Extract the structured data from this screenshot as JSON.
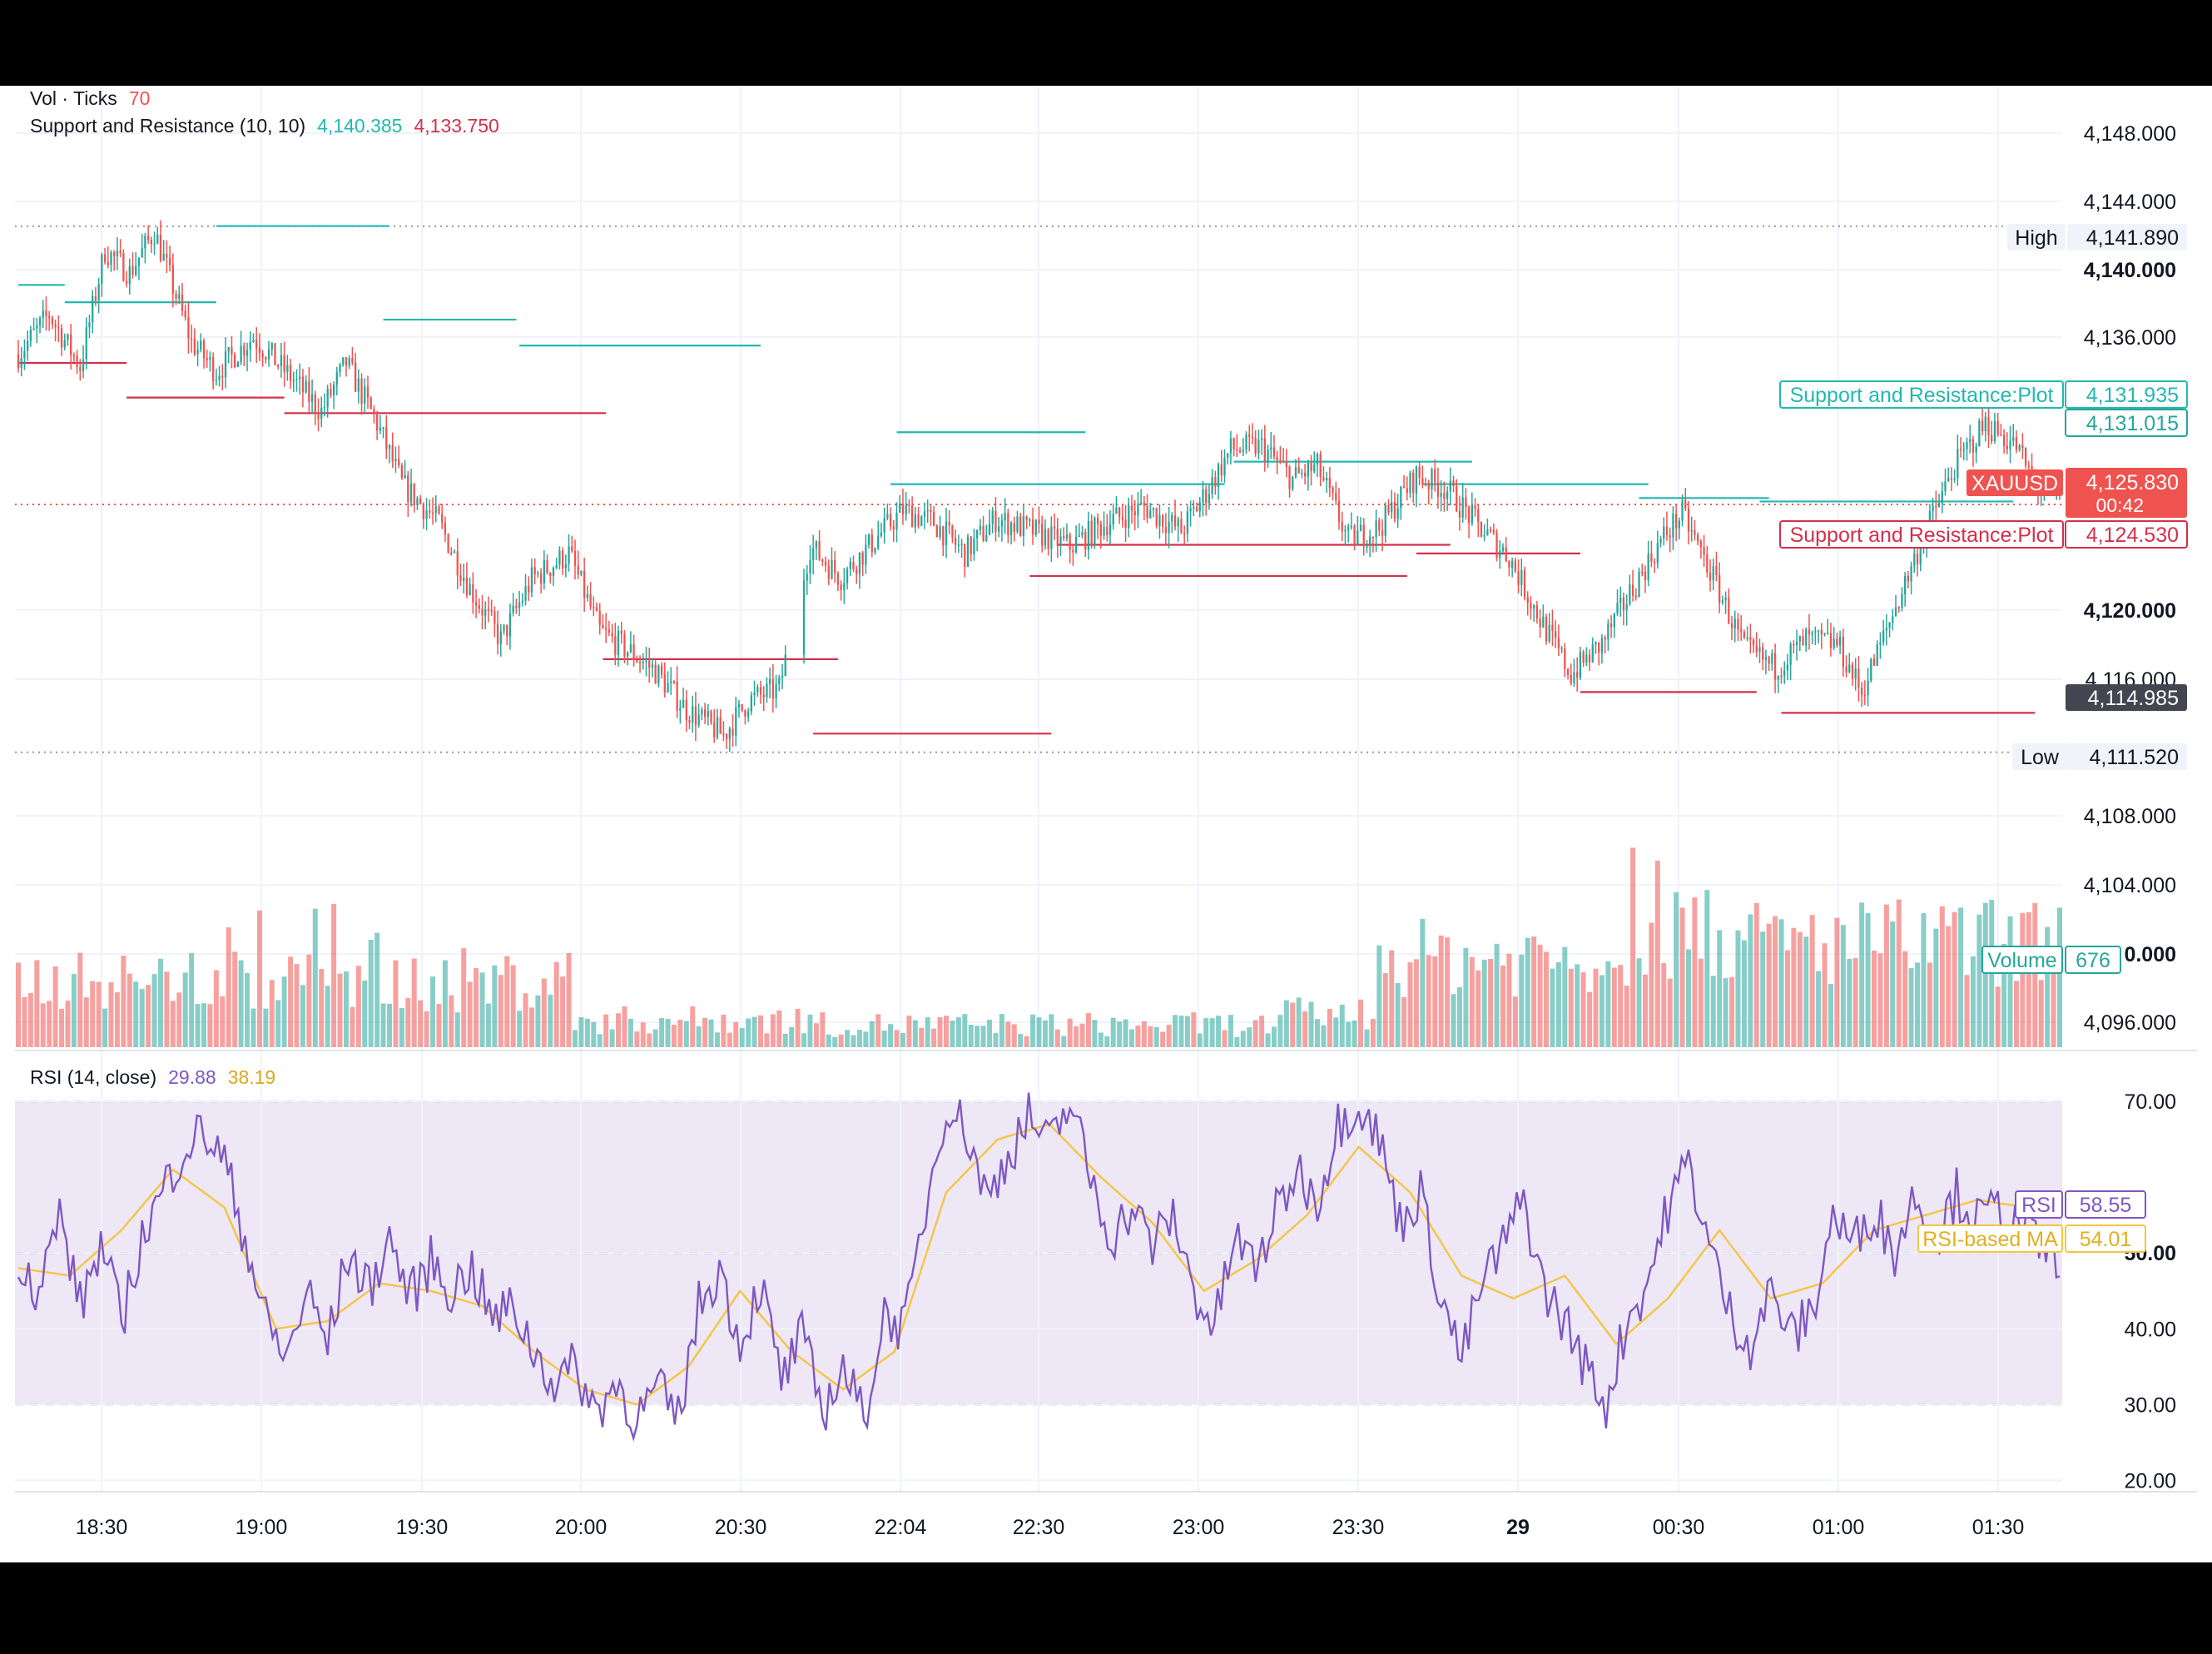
{
  "colors": {
    "up": "#26a69a",
    "down": "#ef5350",
    "resistance": "#22b8b0",
    "support": "#d3304a",
    "rsi": "#7e57c2",
    "rsi_ma": "#f5c542",
    "grid": "#f0f3fa",
    "text": "#131722",
    "rsi_band": "#ede7f6"
  },
  "legend": {
    "vol_label": "Vol · Ticks",
    "vol_value": "70",
    "sr_label": "Support and Resistance (10, 10)",
    "sr_resistance": "4,140.385",
    "sr_support": "4,133.750",
    "rsi_label": "RSI (14, close)",
    "rsi_value": "29.88",
    "rsi_ma_value": "38.19"
  },
  "chart_data": [
    {
      "type": "candlestick",
      "symbol": "XAUUSD",
      "price_axis_ticks": [
        "4,148.000",
        "4,144.000",
        "4,140.000",
        "4,136.000",
        "4,120.000",
        "4,116.000",
        "4,108.000",
        "4,104.000",
        "0.000",
        "4,096.000"
      ],
      "price_range": [
        4094.5,
        4150.0
      ],
      "x_tick_labels": [
        "18:30",
        "19:00",
        "19:30",
        "20:00",
        "20:30",
        "22:04",
        "22:30",
        "23:00",
        "23:30",
        "29",
        "00:30",
        "01:00",
        "01:30"
      ],
      "high_label": "High",
      "high_value": "4,141.890",
      "low_label": "Low",
      "low_value": "4,111.520",
      "last_price": "4,125.830",
      "countdown": "00:42",
      "prev_close": "4,114.985",
      "sr_resistance_label": "Support and Resistance:Plot",
      "sr_resistance_value": "4,131.935",
      "sr_support_label": "Support and Resistance:Plot",
      "sr_support_value": "4,124.530",
      "upper_marker": "4,131.015",
      "volume_label": "Volume",
      "volume_value": "676",
      "anchors": [
        [
          0,
          4134.5
        ],
        [
          10,
          4136.8
        ],
        [
          20,
          4133.8
        ],
        [
          28,
          4140.5
        ],
        [
          36,
          4139.2
        ],
        [
          44,
          4141.6
        ],
        [
          56,
          4135.2
        ],
        [
          64,
          4133.5
        ],
        [
          76,
          4135.5
        ],
        [
          88,
          4133.2
        ],
        [
          98,
          4131.2
        ],
        [
          106,
          4134.0
        ],
        [
          116,
          4130.5
        ],
        [
          124,
          4127.0
        ],
        [
          136,
          4124.8
        ],
        [
          146,
          4121.0
        ],
        [
          156,
          4118.0
        ],
        [
          166,
          4121.5
        ],
        [
          178,
          4123.0
        ],
        [
          188,
          4118.5
        ],
        [
          198,
          4117.3
        ],
        [
          206,
          4116.2
        ],
        [
          216,
          4114.0
        ],
        [
          228,
          4112.5
        ],
        [
          236,
          4114.5
        ],
        [
          246,
          4115.2
        ],
        [
          256,
          4123.4
        ],
        [
          266,
          4121.6
        ],
        [
          278,
          4124.0
        ],
        [
          286,
          4125.5
        ],
        [
          296,
          4124.8
        ],
        [
          306,
          4123.0
        ],
        [
          316,
          4125.0
        ],
        [
          328,
          4124.3
        ],
        [
          340,
          4123.4
        ],
        [
          352,
          4124.8
        ],
        [
          364,
          4125.7
        ],
        [
          376,
          4124.3
        ],
        [
          384,
          4126.5
        ],
        [
          392,
          4129.0
        ],
        [
          402,
          4129.2
        ],
        [
          412,
          4127.3
        ],
        [
          420,
          4128.0
        ],
        [
          430,
          4123.8
        ],
        [
          440,
          4124.5
        ],
        [
          452,
          4127.5
        ],
        [
          462,
          4126.7
        ],
        [
          472,
          4124.6
        ],
        [
          482,
          4122.8
        ],
        [
          492,
          4119.2
        ],
        [
          502,
          4116.0
        ],
        [
          512,
          4117.8
        ],
        [
          522,
          4121.0
        ],
        [
          532,
          4124.0
        ],
        [
          538,
          4125.3
        ],
        [
          548,
          4121.6
        ],
        [
          558,
          4117.5
        ],
        [
          568,
          4116.4
        ],
        [
          578,
          4118.0
        ],
        [
          588,
          4117.8
        ],
        [
          596,
          4115.0
        ],
        [
          606,
          4119.5
        ],
        [
          616,
          4124.0
        ],
        [
          626,
          4128.0
        ],
        [
          636,
          4130.5
        ],
        [
          646,
          4129.2
        ],
        [
          652,
          4127.0
        ],
        [
          660,
          4126.5
        ]
      ],
      "candle_count": 661,
      "resistance_levels": [
        [
          0,
          15,
          4138.5
        ],
        [
          15,
          64,
          4137.5
        ],
        [
          64,
          120,
          4141.9
        ],
        [
          118,
          161,
          4136.5
        ],
        [
          162,
          240,
          4135.0
        ],
        [
          284,
          345,
          4130.0
        ],
        [
          282,
          390,
          4127.0
        ],
        [
          393,
          470,
          4128.3
        ],
        [
          454,
          527,
          4127.0
        ],
        [
          524,
          566,
          4126.2
        ],
        [
          563,
          645,
          4126.0
        ]
      ],
      "support_levels": [
        [
          0,
          35,
          4134.0
        ],
        [
          35,
          86,
          4132.0
        ],
        [
          86,
          190,
          4131.1
        ],
        [
          189,
          265,
          4116.9
        ],
        [
          257,
          334,
          4112.6
        ],
        [
          336,
          463,
          4123.5
        ],
        [
          327,
          449,
          4121.7
        ],
        [
          452,
          505,
          4123.0
        ],
        [
          505,
          562,
          4115.0
        ],
        [
          570,
          652,
          4113.8
        ]
      ]
    },
    {
      "type": "line",
      "title": "RSI (14, close)",
      "y_ticks": [
        "70.00",
        "50.00",
        "40.00",
        "30.00",
        "20.00"
      ],
      "y_range": [
        18.5,
        76.5
      ],
      "overbought": 70,
      "oversold": 30,
      "rsi_label": "RSI",
      "rsi_value": "58.55",
      "ma_label": "RSI-based MA",
      "ma_value": "54.01",
      "rsi_anchors": [
        [
          0,
          50
        ],
        [
          6,
          45
        ],
        [
          12,
          55
        ],
        [
          18,
          43
        ],
        [
          24,
          51
        ],
        [
          30,
          41
        ],
        [
          36,
          52
        ],
        [
          42,
          58
        ],
        [
          48,
          64
        ],
        [
          54,
          66
        ],
        [
          60,
          62
        ],
        [
          66,
          52
        ],
        [
          72,
          41
        ],
        [
          78,
          36
        ],
        [
          84,
          45
        ],
        [
          90,
          38
        ],
        [
          96,
          50
        ],
        [
          102,
          45
        ],
        [
          108,
          52
        ],
        [
          114,
          44
        ],
        [
          120,
          49
        ],
        [
          126,
          45
        ],
        [
          132,
          48
        ],
        [
          138,
          41
        ],
        [
          144,
          43
        ],
        [
          150,
          37
        ],
        [
          156,
          33
        ],
        [
          162,
          35
        ],
        [
          168,
          29
        ],
        [
          174,
          33
        ],
        [
          180,
          28
        ],
        [
          186,
          32
        ],
        [
          192,
          28
        ],
        [
          198,
          43
        ],
        [
          204,
          48
        ],
        [
          210,
          38
        ],
        [
          216,
          46
        ],
        [
          222,
          33
        ],
        [
          228,
          39
        ],
        [
          234,
          29
        ],
        [
          240,
          35
        ],
        [
          246,
          28
        ],
        [
          252,
          42
        ],
        [
          258,
          40
        ],
        [
          264,
          56
        ],
        [
          270,
          70
        ],
        [
          276,
          66
        ],
        [
          282,
          57
        ],
        [
          288,
          63
        ],
        [
          294,
          68
        ],
        [
          300,
          64
        ],
        [
          306,
          70
        ],
        [
          312,
          60
        ],
        [
          318,
          52
        ],
        [
          324,
          56
        ],
        [
          330,
          51
        ],
        [
          336,
          55
        ],
        [
          342,
          45
        ],
        [
          348,
          40
        ],
        [
          354,
          52
        ],
        [
          360,
          48
        ],
        [
          366,
          55
        ],
        [
          372,
          61
        ],
        [
          378,
          57
        ],
        [
          384,
          67
        ],
        [
          390,
          70
        ],
        [
          396,
          65
        ],
        [
          402,
          54
        ],
        [
          408,
          58
        ],
        [
          414,
          44
        ],
        [
          420,
          36
        ],
        [
          426,
          46
        ],
        [
          432,
          51
        ],
        [
          438,
          57
        ],
        [
          444,
          45
        ],
        [
          450,
          41
        ],
        [
          456,
          35
        ],
        [
          462,
          30
        ],
        [
          468,
          41
        ],
        [
          474,
          46
        ],
        [
          480,
          56
        ],
        [
          486,
          62
        ],
        [
          492,
          51
        ],
        [
          498,
          42
        ],
        [
          504,
          38
        ],
        [
          510,
          45
        ],
        [
          516,
          39
        ],
        [
          522,
          42
        ],
        [
          528,
          55
        ],
        [
          534,
          51
        ],
        [
          540,
          56
        ],
        [
          546,
          50
        ],
        [
          552,
          58
        ],
        [
          558,
          52
        ],
        [
          564,
          58
        ],
        [
          570,
          54
        ],
        [
          576,
          56
        ],
        [
          582,
          53
        ],
        [
          588,
          51
        ],
        [
          594,
          50
        ]
      ],
      "ma_anchors": [
        [
          0,
          48
        ],
        [
          15,
          47
        ],
        [
          30,
          53
        ],
        [
          45,
          61
        ],
        [
          60,
          56
        ],
        [
          75,
          40
        ],
        [
          90,
          41
        ],
        [
          105,
          46
        ],
        [
          120,
          45
        ],
        [
          135,
          43
        ],
        [
          150,
          37
        ],
        [
          165,
          32
        ],
        [
          180,
          30
        ],
        [
          195,
          35
        ],
        [
          210,
          45
        ],
        [
          225,
          37
        ],
        [
          240,
          32
        ],
        [
          255,
          37
        ],
        [
          270,
          58
        ],
        [
          285,
          65
        ],
        [
          300,
          67
        ],
        [
          315,
          60
        ],
        [
          330,
          54
        ],
        [
          345,
          45
        ],
        [
          360,
          49
        ],
        [
          375,
          55
        ],
        [
          390,
          64
        ],
        [
          405,
          58
        ],
        [
          420,
          47
        ],
        [
          435,
          44
        ],
        [
          450,
          47
        ],
        [
          465,
          38
        ],
        [
          480,
          44
        ],
        [
          495,
          53
        ],
        [
          510,
          44
        ],
        [
          525,
          46
        ],
        [
          540,
          53
        ],
        [
          555,
          55
        ],
        [
          570,
          57
        ],
        [
          585,
          56
        ],
        [
          594,
          55
        ]
      ],
      "point_count": 595
    }
  ]
}
